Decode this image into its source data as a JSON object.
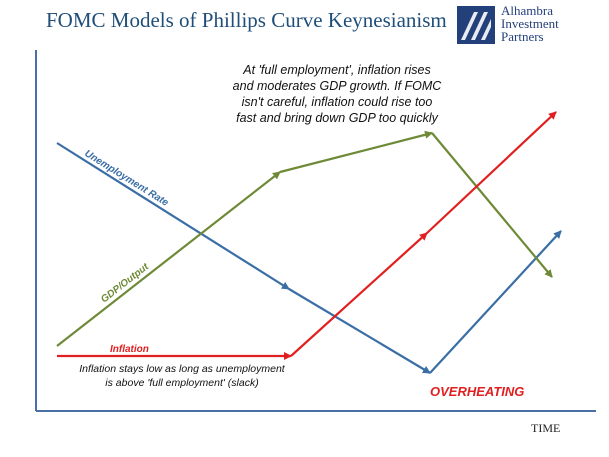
{
  "title": "FOMC Models of Phillips Curve Keynesianism",
  "logo": {
    "line1": "Alhambra",
    "line2": "Investment",
    "line3": "Partners"
  },
  "annotations": {
    "top": [
      "At 'full employment', inflation rises",
      "and moderates GDP growth.  If FOMC",
      "isn't careful, inflation could rise too",
      "fast and bring down GDP too quickly"
    ],
    "bottom": [
      "Inflation stays low as long as unemployment",
      "is above 'full employment' (slack)"
    ],
    "overheating": "OVERHEATING"
  },
  "axis": {
    "x_label": "TIME"
  },
  "series": {
    "unemployment": {
      "label": "Unemployment Rate",
      "color": "#3a6ea5"
    },
    "gdp": {
      "label": "GDP/Output",
      "color": "#6e8a37"
    },
    "inflation": {
      "label": "Inflation",
      "color": "#e02020"
    }
  }
}
